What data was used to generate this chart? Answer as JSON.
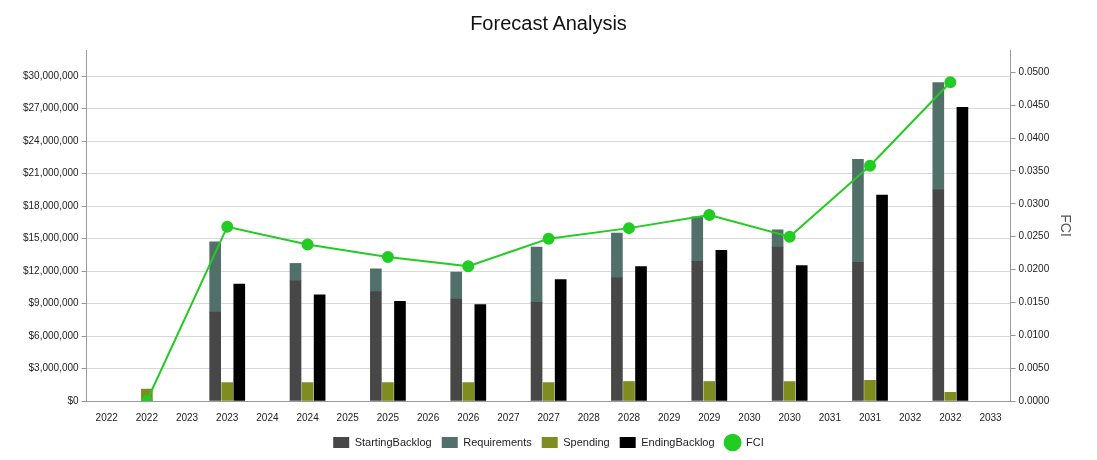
{
  "chart_data": {
    "type": "bar",
    "title": "Forecast Analysis",
    "y2label": "FCI",
    "categories": [
      "2022",
      "2022",
      "2023",
      "2023",
      "2024",
      "2024",
      "2025",
      "2025",
      "2026",
      "2026",
      "2027",
      "2027",
      "2028",
      "2028",
      "2029",
      "2029",
      "2030",
      "2030",
      "2031",
      "2031",
      "2032",
      "2032",
      "2033"
    ],
    "grid": "y",
    "legend": "bottom",
    "marker": "circle",
    "ylim": [
      0,
      32400000
    ],
    "yticks": [
      {
        "value": 0,
        "label": "$0"
      },
      {
        "value": 3000000,
        "label": "$3,000,000"
      },
      {
        "value": 6000000,
        "label": "$6,000,000"
      },
      {
        "value": 9000000,
        "label": "$9,000,000"
      },
      {
        "value": 12000000,
        "label": "$12,000,000"
      },
      {
        "value": 15000000,
        "label": "$15,000,000"
      },
      {
        "value": 18000000,
        "label": "$18,000,000"
      },
      {
        "value": 21000000,
        "label": "$21,000,000"
      },
      {
        "value": 24000000,
        "label": "$24,000,000"
      },
      {
        "value": 27000000,
        "label": "$27,000,000"
      },
      {
        "value": 30000000,
        "label": "$30,000,000"
      }
    ],
    "y2lim": [
      0,
      0.0534
    ],
    "y2ticks": [
      {
        "value": 0,
        "label": "0.0000"
      },
      {
        "value": 0.005,
        "label": "0.0050"
      },
      {
        "value": 0.01,
        "label": "0.0100"
      },
      {
        "value": 0.015,
        "label": "0.0150"
      },
      {
        "value": 0.02,
        "label": "0.0200"
      },
      {
        "value": 0.025,
        "label": "0.0250"
      },
      {
        "value": 0.03,
        "label": "0.0300"
      },
      {
        "value": 0.035,
        "label": "0.0350"
      },
      {
        "value": 0.04,
        "label": "0.0400"
      },
      {
        "value": 0.045,
        "label": "0.0450"
      },
      {
        "value": 0.05,
        "label": "0.0500"
      }
    ],
    "series": [
      {
        "name": "StartingBacklog",
        "color": "#474747",
        "values": [
          null,
          null,
          null,
          8200000,
          null,
          11100000,
          null,
          10100000,
          null,
          9400000,
          null,
          9100000,
          null,
          11400000,
          null,
          12900000,
          null,
          14200000,
          null,
          12800000,
          null,
          19500000,
          null
        ]
      },
      {
        "name": "Requirements",
        "color": "#52706a",
        "base": [
          null,
          null,
          null,
          8200000,
          null,
          11100000,
          null,
          10100000,
          null,
          9400000,
          null,
          9100000,
          null,
          11400000,
          null,
          12900000,
          null,
          14200000,
          null,
          12800000,
          null,
          19500000,
          null
        ],
        "values": [
          null,
          null,
          null,
          6500000,
          null,
          1600000,
          null,
          2100000,
          null,
          2500000,
          null,
          5100000,
          null,
          4100000,
          null,
          4100000,
          null,
          1600000,
          null,
          9500000,
          null,
          9900000,
          null
        ]
      },
      {
        "name": "Spending",
        "color": "#7f8c1f",
        "values": [
          null,
          1100000,
          null,
          1700000,
          null,
          1700000,
          null,
          1700000,
          null,
          1700000,
          null,
          1700000,
          null,
          1800000,
          null,
          1800000,
          null,
          1800000,
          null,
          1900000,
          null,
          800000,
          null
        ]
      },
      {
        "name": "EndingBacklog",
        "color": "#000000",
        "values": [
          null,
          null,
          null,
          10800000,
          null,
          9800000,
          null,
          9200000,
          null,
          8900000,
          null,
          11200000,
          null,
          12400000,
          null,
          13900000,
          null,
          12500000,
          null,
          19000000,
          null,
          27100000,
          null
        ]
      },
      {
        "name": "FCI",
        "type": "line",
        "axis": "y2",
        "color": "#22cc22",
        "values": [
          null,
          0,
          null,
          0.0265,
          null,
          0.0238,
          null,
          0.0219,
          null,
          0.0205,
          null,
          0.0247,
          null,
          0.0263,
          null,
          0.0283,
          null,
          0.025,
          null,
          0.0358,
          null,
          0.0485,
          null
        ]
      }
    ]
  }
}
